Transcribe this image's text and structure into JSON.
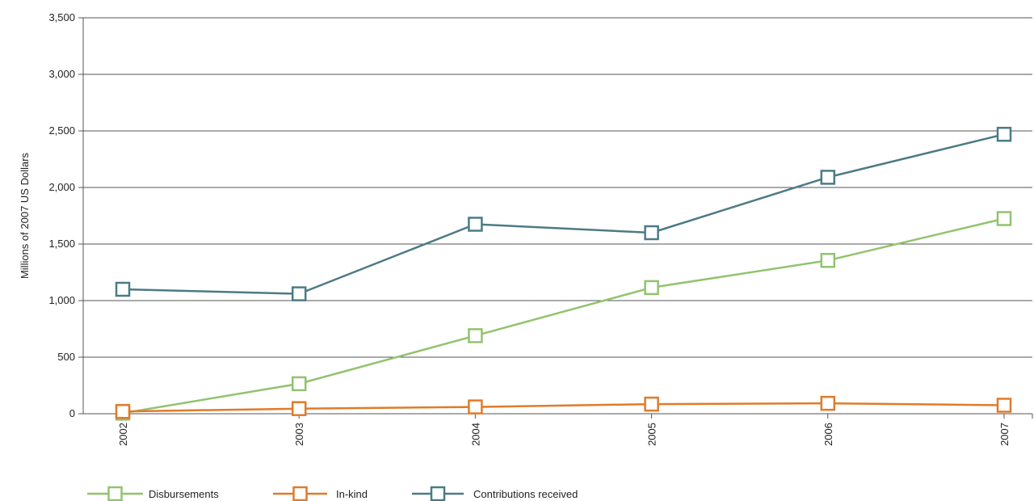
{
  "chart_data": {
    "type": "line",
    "ylabel": "Millions of 2007 US Dollars",
    "xlabel": "",
    "x": [
      "2002",
      "2003",
      "2004",
      "2005",
      "2006",
      "2007"
    ],
    "ylim": [
      0,
      3500
    ],
    "yticks": [
      0,
      500,
      1000,
      1500,
      2000,
      2500,
      3000,
      3500
    ],
    "ytick_labels": [
      "0",
      "500",
      "1,000",
      "1,500",
      "2,000",
      "2,500",
      "3,000",
      "3,500"
    ],
    "grid": "horizontal",
    "legend_position": "bottom",
    "marker": "hollow-square",
    "series": [
      {
        "name": "Disbursements",
        "color": "#92c36e",
        "values": [
          5,
          265,
          690,
          1115,
          1355,
          1725
        ]
      },
      {
        "name": "In-kind",
        "color": "#e07b2a",
        "values": [
          20,
          45,
          60,
          85,
          92,
          75
        ]
      },
      {
        "name": "Contributions received",
        "color": "#4c7b85",
        "values": [
          1100,
          1060,
          1675,
          1600,
          2090,
          2470
        ]
      }
    ]
  }
}
